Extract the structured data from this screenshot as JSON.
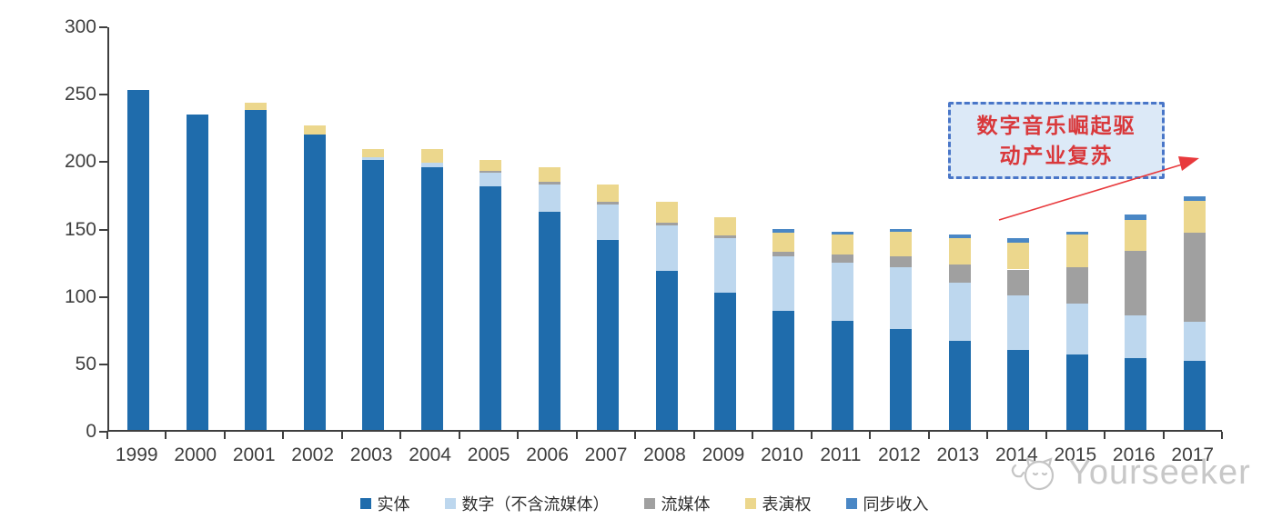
{
  "chart_data": {
    "type": "bar",
    "subtype": "stacked",
    "title": "",
    "xlabel": "",
    "ylabel": "",
    "categories": [
      "1999",
      "2000",
      "2001",
      "2002",
      "2003",
      "2004",
      "2005",
      "2006",
      "2007",
      "2008",
      "2009",
      "2010",
      "2011",
      "2012",
      "2013",
      "2014",
      "2015",
      "2016",
      "2017"
    ],
    "series": [
      {
        "name": "实体",
        "color": "#1f6cac",
        "values": [
          252,
          234,
          237,
          219,
          200,
          195,
          181,
          162,
          141,
          118,
          102,
          88,
          81,
          75,
          66,
          59,
          56,
          53,
          51
        ]
      },
      {
        "name": "数字（不含流媒体）",
        "color": "#bdd7ee",
        "values": [
          0,
          0,
          0,
          0,
          2,
          3,
          10,
          20,
          26,
          34,
          40,
          41,
          43,
          46,
          43,
          41,
          38,
          32,
          29
        ]
      },
      {
        "name": "流媒体",
        "color": "#a0a0a0",
        "values": [
          0,
          0,
          0,
          0,
          0,
          0,
          1,
          2,
          2,
          2,
          2,
          3,
          6,
          8,
          14,
          19,
          27,
          48,
          66
        ]
      },
      {
        "name": "表演权",
        "color": "#ecd78d",
        "values": [
          0,
          0,
          6,
          7,
          6,
          10,
          8,
          11,
          13,
          15,
          14,
          14,
          15,
          18,
          19,
          20,
          24,
          23,
          24
        ]
      },
      {
        "name": "同步收入",
        "color": "#4a87c5",
        "values": [
          0,
          0,
          0,
          0,
          0,
          0,
          0,
          0,
          0,
          0,
          0,
          3,
          2,
          2,
          3,
          3,
          2,
          4,
          3
        ]
      }
    ],
    "y_axis": {
      "min": 0,
      "max": 300,
      "tick_step": 50,
      "ticks": [
        300,
        250,
        200,
        150,
        100,
        50,
        0
      ]
    },
    "legend_position": "bottom",
    "grid": false,
    "axis_color": "#3f3f3f"
  },
  "annotation": {
    "line1": "数字音乐崛起驱",
    "line2": "动产业复苏",
    "text_color": "#d9383b",
    "box_fill": "#dce9f7",
    "box_border": "#4976c8",
    "arrow_color": "#e8393c"
  },
  "watermark": {
    "text": "Yourseeker",
    "color": "#c8c8c8",
    "logo": "cat-logo"
  }
}
